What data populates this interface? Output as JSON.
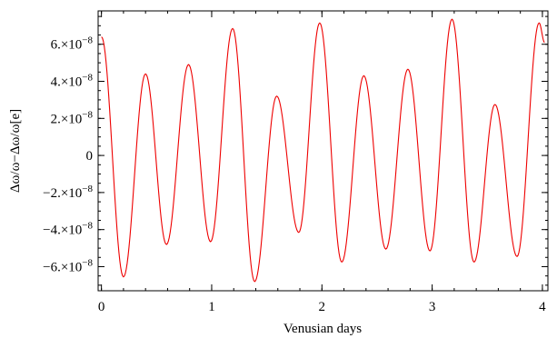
{
  "chart_data": {
    "type": "line",
    "title": "",
    "xlabel": "Venusian days",
    "ylabel": "Δω/ω−Δω/ω[e]",
    "xlim": [
      -0.03,
      4.05
    ],
    "ylim": [
      -7.3e-08,
      7.8e-08
    ],
    "x_ticks": [
      0,
      1,
      2,
      3,
      4
    ],
    "x_tick_labels": [
      "0",
      "1",
      "2",
      "3",
      "4"
    ],
    "x_minor_step": 0.2,
    "y_ticks": [
      -6e-08,
      -4e-08,
      -2e-08,
      0,
      2e-08,
      4e-08,
      6e-08
    ],
    "y_tick_labels": [
      {
        "mantissa": "−6.×10",
        "exp": "−8"
      },
      {
        "mantissa": "−4.×10",
        "exp": "−8"
      },
      {
        "mantissa": "−2.×10",
        "exp": "−8"
      },
      {
        "mantissa": "0",
        "exp": ""
      },
      {
        "mantissa": "2.×10",
        "exp": "−8"
      },
      {
        "mantissa": "4.×10",
        "exp": "−8"
      },
      {
        "mantissa": "6.×10",
        "exp": "−8"
      }
    ],
    "y_minor_step": 5e-09,
    "grid": false,
    "series": [
      {
        "color": "#ee0000",
        "extrema": [
          {
            "x": 0.0,
            "y": 6.4e-08
          },
          {
            "x": 0.2,
            "y": -6.55e-08
          },
          {
            "x": 0.4,
            "y": 4.4e-08
          },
          {
            "x": 0.59,
            "y": -4.8e-08
          },
          {
            "x": 0.79,
            "y": 4.9e-08
          },
          {
            "x": 0.99,
            "y": -4.65e-08
          },
          {
            "x": 1.19,
            "y": 6.85e-08
          },
          {
            "x": 1.39,
            "y": -6.8e-08
          },
          {
            "x": 1.59,
            "y": 3.2e-08
          },
          {
            "x": 1.79,
            "y": -4.15e-08
          },
          {
            "x": 1.98,
            "y": 7.15e-08
          },
          {
            "x": 2.18,
            "y": -5.75e-08
          },
          {
            "x": 2.38,
            "y": 4.3e-08
          },
          {
            "x": 2.58,
            "y": -5.05e-08
          },
          {
            "x": 2.78,
            "y": 4.65e-08
          },
          {
            "x": 2.98,
            "y": -5.15e-08
          },
          {
            "x": 3.18,
            "y": 7.35e-08
          },
          {
            "x": 3.38,
            "y": -5.75e-08
          },
          {
            "x": 3.57,
            "y": 2.75e-08
          },
          {
            "x": 3.77,
            "y": -5.45e-08
          },
          {
            "x": 3.97,
            "y": 7.15e-08
          },
          {
            "x": 4.02,
            "y": 6.1e-08
          }
        ]
      }
    ]
  }
}
